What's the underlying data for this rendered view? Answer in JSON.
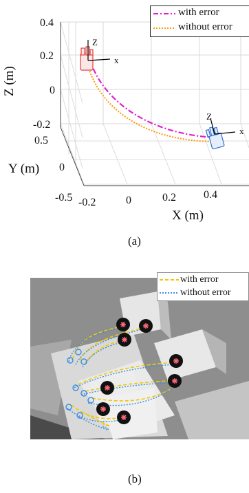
{
  "panel_a": {
    "caption": "(a)",
    "z_axis_label": "Z (m)",
    "y_axis_label": "Y (m)",
    "x_axis_label": "X (m)",
    "z_ticks": [
      "0.4",
      "0.2",
      "0",
      "-0.2"
    ],
    "y_ticks": [
      "0.5",
      "0",
      "-0.5"
    ],
    "x_ticks": [
      "-0.2",
      "0",
      "0.2",
      "0.4"
    ],
    "start_frame": {
      "z": "Z",
      "x": "X"
    },
    "end_frame": {
      "z": "Z",
      "x": "X"
    },
    "legend": {
      "with_error": "with error",
      "without_error": "without error"
    },
    "colors": {
      "with_error": "#e020d0",
      "without_error": "#ff9900",
      "start_gripper": "#e04040",
      "end_gripper": "#3070d0"
    }
  },
  "panel_b": {
    "caption": "(b)",
    "legend": {
      "with_error": "with error",
      "without_error": "without error"
    },
    "colors": {
      "with_error": "#f0c800",
      "without_error": "#3a8ee0",
      "marker": "#ff6a7a"
    }
  },
  "chart_data": {
    "type": "line",
    "title": "",
    "xlabel": "X (m)",
    "ylabel": "Y (m)",
    "zlabel": "Z (m)",
    "xlim": [
      -0.2,
      0.5
    ],
    "ylim": [
      -0.5,
      0.5
    ],
    "zlim": [
      -0.2,
      0.4
    ],
    "grid": true,
    "legend_position": "top-right",
    "series": [
      {
        "name": "with error",
        "points": [
          [
            -0.15,
            -0.3,
            0.18
          ],
          [
            0.45,
            0.0,
            -0.18
          ]
        ]
      },
      {
        "name": "without error",
        "points": [
          [
            -0.15,
            -0.3,
            0.17
          ],
          [
            0.45,
            0.0,
            -0.19
          ]
        ]
      }
    ]
  }
}
